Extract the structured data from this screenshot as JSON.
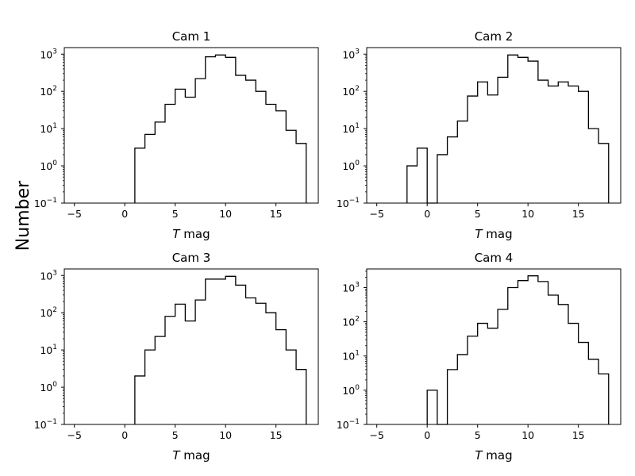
{
  "figure": {
    "ylabel": "Number"
  },
  "chart_data": [
    {
      "type": "histogram",
      "title": "Cam 1",
      "xlabel": "T mag",
      "xlim": [
        -6,
        19.2
      ],
      "ylim": [
        0.1,
        1500
      ],
      "yscale": "log",
      "xticks": [
        "−5",
        "0",
        "5",
        "10",
        "15"
      ],
      "yticks": [
        {
          "base": "10",
          "exp": "−1"
        },
        {
          "base": "10",
          "exp": "0"
        },
        {
          "base": "10",
          "exp": "1"
        },
        {
          "base": "10",
          "exp": "2"
        },
        {
          "base": "10",
          "exp": "3"
        }
      ],
      "bin_edges": [
        1,
        2,
        3,
        4,
        5,
        6,
        7,
        8,
        9,
        10,
        11,
        12,
        13,
        14,
        15,
        16,
        17,
        18
      ],
      "counts": [
        3,
        7,
        15,
        45,
        115,
        70,
        220,
        850,
        950,
        820,
        270,
        200,
        100,
        45,
        30,
        9,
        4
      ]
    },
    {
      "type": "histogram",
      "title": "Cam 2",
      "xlabel": "T mag",
      "xlim": [
        -6,
        19.2
      ],
      "ylim": [
        0.1,
        1500
      ],
      "yscale": "log",
      "xticks": [
        "−5",
        "0",
        "5",
        "10",
        "15"
      ],
      "yticks": [
        {
          "base": "10",
          "exp": "−1"
        },
        {
          "base": "10",
          "exp": "0"
        },
        {
          "base": "10",
          "exp": "1"
        },
        {
          "base": "10",
          "exp": "2"
        },
        {
          "base": "10",
          "exp": "3"
        }
      ],
      "bin_edges": [
        -2,
        -1,
        0,
        1,
        2,
        3,
        4,
        5,
        6,
        7,
        8,
        9,
        10,
        11,
        12,
        13,
        14,
        15,
        16,
        17,
        18
      ],
      "counts": [
        1,
        3,
        0,
        2,
        6,
        16,
        75,
        180,
        80,
        240,
        950,
        820,
        650,
        200,
        140,
        180,
        140,
        100,
        10,
        4
      ]
    },
    {
      "type": "histogram",
      "title": "Cam 3",
      "xlabel": "T mag",
      "xlim": [
        -6,
        19.2
      ],
      "ylim": [
        0.1,
        1500
      ],
      "yscale": "log",
      "xticks": [
        "−5",
        "0",
        "5",
        "10",
        "15"
      ],
      "yticks": [
        {
          "base": "10",
          "exp": "−1"
        },
        {
          "base": "10",
          "exp": "0"
        },
        {
          "base": "10",
          "exp": "1"
        },
        {
          "base": "10",
          "exp": "2"
        },
        {
          "base": "10",
          "exp": "3"
        }
      ],
      "bin_edges": [
        1,
        2,
        3,
        4,
        5,
        6,
        7,
        8,
        9,
        10,
        11,
        12,
        13,
        14,
        15,
        16,
        17,
        18
      ],
      "counts": [
        2,
        10,
        23,
        80,
        170,
        60,
        220,
        800,
        800,
        950,
        550,
        250,
        180,
        100,
        35,
        10,
        3
      ]
    },
    {
      "type": "histogram",
      "title": "Cam 4",
      "xlabel": "T mag",
      "xlim": [
        -6,
        19.2
      ],
      "ylim": [
        0.1,
        3500
      ],
      "yscale": "log",
      "xticks": [
        "−5",
        "0",
        "5",
        "10",
        "15"
      ],
      "yticks": [
        {
          "base": "10",
          "exp": "−1"
        },
        {
          "base": "10",
          "exp": "0"
        },
        {
          "base": "10",
          "exp": "1"
        },
        {
          "base": "10",
          "exp": "2"
        },
        {
          "base": "10",
          "exp": "3"
        }
      ],
      "bin_edges": [
        0,
        1,
        2,
        3,
        4,
        5,
        6,
        7,
        8,
        9,
        10,
        11,
        12,
        13,
        14,
        15,
        16,
        17,
        18
      ],
      "counts": [
        1,
        0,
        4,
        11,
        38,
        90,
        65,
        230,
        1000,
        1600,
        2200,
        1500,
        600,
        320,
        90,
        25,
        8,
        3
      ]
    }
  ]
}
